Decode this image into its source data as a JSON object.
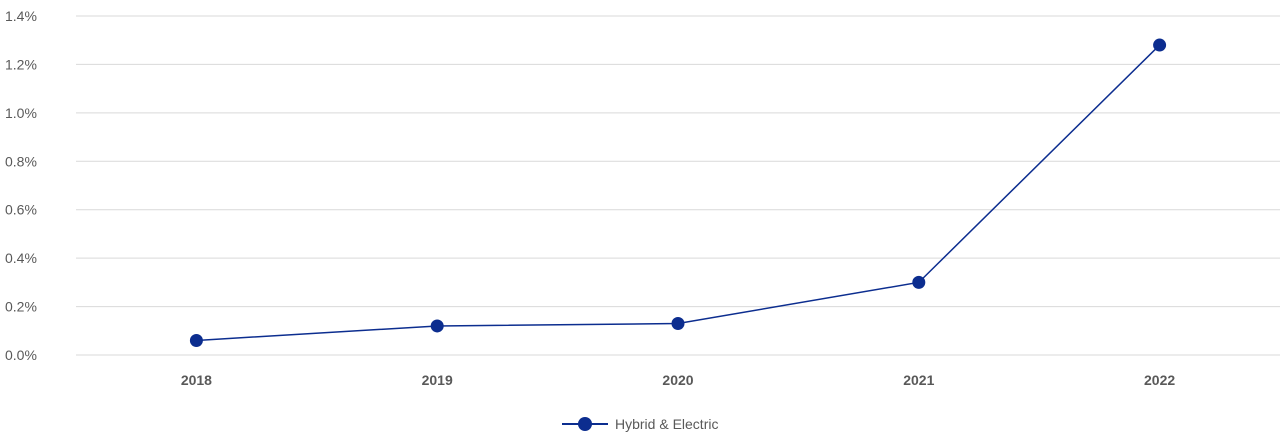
{
  "chart_data": {
    "type": "line",
    "title": "",
    "xlabel": "",
    "ylabel": "",
    "categories": [
      "2018",
      "2019",
      "2020",
      "2021",
      "2022"
    ],
    "series": [
      {
        "name": "Hybrid & Electric",
        "values": [
          0.06,
          0.12,
          0.13,
          0.3,
          1.28
        ],
        "color": "#0c2d8f"
      }
    ],
    "ylim": [
      0,
      1.4
    ],
    "yticks": [
      0,
      0.2,
      0.4,
      0.6,
      0.8,
      1.0,
      1.2,
      1.4
    ],
    "ytick_labels": [
      "0.0%",
      "0.2%",
      "0.4%",
      "0.6%",
      "0.8%",
      "1.0%",
      "1.2%",
      "1.4%"
    ],
    "grid": true,
    "legend_position": "bottom-center",
    "colors": {
      "grid": "#d9d9d9",
      "axis_text": "#595959",
      "series": "#0c2d8f"
    }
  }
}
